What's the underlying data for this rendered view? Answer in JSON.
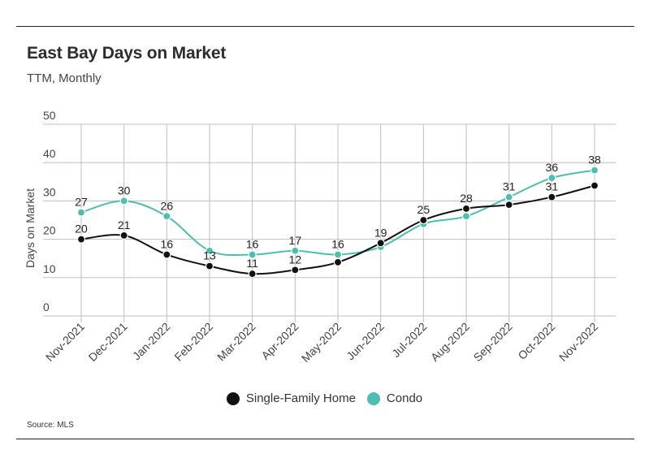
{
  "header": {
    "title": "East Bay Days on Market",
    "subtitle": "TTM, Monthly"
  },
  "footer": {
    "source": "Source:  MLS"
  },
  "colors": {
    "single_family": "#111111",
    "condo": "#4dbfae",
    "grid": "#bfbfbf"
  },
  "legend": {
    "items": [
      {
        "label": "Single-Family Home",
        "color": "#111111"
      },
      {
        "label": "Condo",
        "color": "#4dbfae"
      }
    ]
  },
  "chart_data": {
    "type": "line",
    "title": "East Bay Days on Market",
    "subtitle": "TTM, Monthly",
    "xlabel": "",
    "ylabel": "Days on Market",
    "ylim": [
      0,
      50
    ],
    "yticks": [
      0,
      10,
      20,
      30,
      40,
      50
    ],
    "grid": true,
    "legend_position": "bottom",
    "categories": [
      "Nov-2021",
      "Dec-2021",
      "Jan-2022",
      "Feb-2022",
      "Mar-2022",
      "Apr-2022",
      "May-2022",
      "Jun-2022",
      "Jul-2022",
      "Aug-2022",
      "Sep-2022",
      "Oct-2022",
      "Nov-2022"
    ],
    "series": [
      {
        "name": "Single-Family Home",
        "values": [
          20,
          21,
          16,
          13,
          11,
          12,
          14,
          19,
          25,
          28,
          29,
          31,
          34
        ],
        "labels": [
          "20",
          "21",
          "16",
          "13",
          "11",
          "12",
          "",
          "19",
          "25",
          "28",
          "",
          "31",
          ""
        ]
      },
      {
        "name": "Condo",
        "values": [
          27,
          30,
          26,
          17,
          16,
          17,
          16,
          18,
          24,
          26,
          31,
          36,
          38
        ],
        "labels": [
          "27",
          "30",
          "26",
          "",
          "16",
          "17",
          "16",
          "",
          "",
          "",
          "31",
          "36",
          "38"
        ]
      }
    ]
  }
}
